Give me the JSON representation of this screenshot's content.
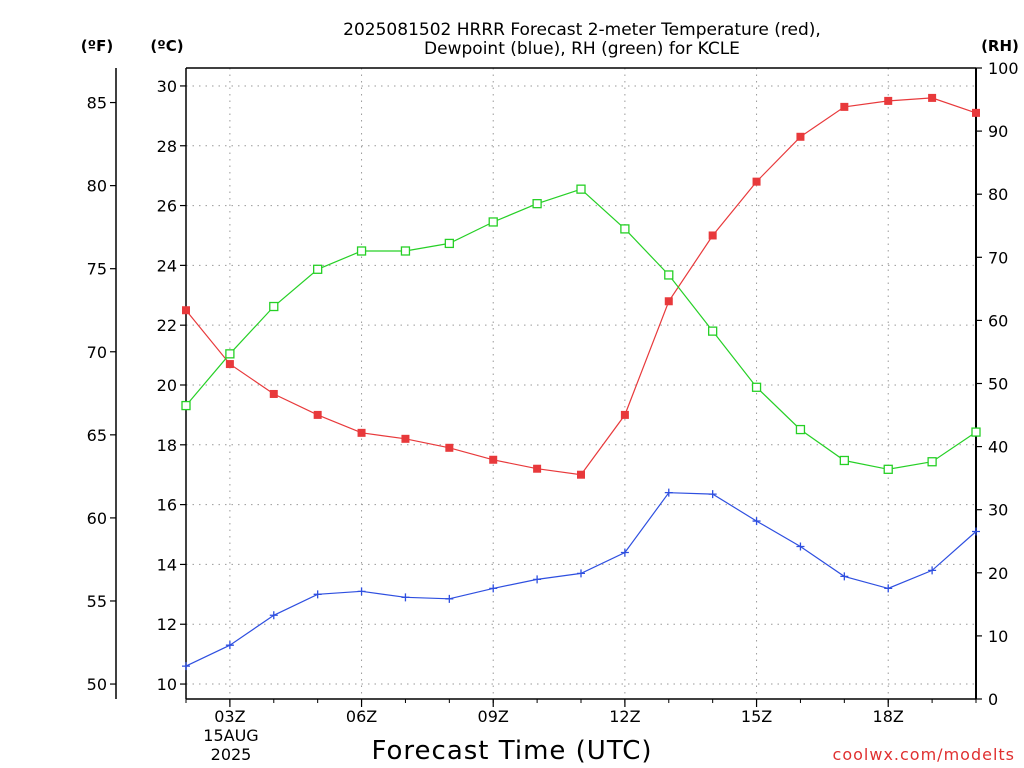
{
  "chart_data": {
    "type": "line",
    "title_lines": [
      "2025081502 HRRR Forecast 2-meter Temperature (red),",
      "Dewpoint (blue), RH (green) for KCLE"
    ],
    "xlabel": "Forecast Time (UTC)",
    "credit": "coolwx.com/modelts",
    "axis_units": {
      "fahrenheit": "(ºF)",
      "celsius": "(ºC)",
      "rh": "(RH)"
    },
    "x_date_label": [
      "15AUG",
      "2025"
    ],
    "x": [
      2,
      3,
      4,
      5,
      6,
      7,
      8,
      9,
      10,
      11,
      12,
      13,
      14,
      15,
      16,
      17,
      18,
      19,
      20
    ],
    "x_ticks": [
      {
        "x": 3,
        "label": "03Z"
      },
      {
        "x": 6,
        "label": "06Z"
      },
      {
        "x": 9,
        "label": "09Z"
      },
      {
        "x": 12,
        "label": "12Z"
      },
      {
        "x": 15,
        "label": "15Z"
      },
      {
        "x": 18,
        "label": "18Z"
      }
    ],
    "xlim": [
      2,
      20
    ],
    "celsius_ylim": [
      9.5,
      30.6
    ],
    "celsius_ticks": [
      "10",
      "12",
      "14",
      "16",
      "18",
      "20",
      "22",
      "24",
      "26",
      "28",
      "30"
    ],
    "fahrenheit_ticks": [
      "50",
      "55",
      "60",
      "65",
      "70",
      "75",
      "80",
      "85"
    ],
    "rh_ylim": [
      0,
      100
    ],
    "rh_ticks": [
      "0",
      "10",
      "20",
      "30",
      "40",
      "50",
      "60",
      "70",
      "80",
      "90",
      "100"
    ],
    "grid": true,
    "series": [
      {
        "name": "Temperature",
        "axis": "celsius",
        "color": "#e8393b",
        "marker": "filled-square",
        "values": [
          22.5,
          20.7,
          19.7,
          19.0,
          18.4,
          18.2,
          17.9,
          17.5,
          17.2,
          17.0,
          19.0,
          22.8,
          25.0,
          26.8,
          28.3,
          29.3,
          29.5,
          29.6,
          29.1
        ]
      },
      {
        "name": "Dewpoint",
        "axis": "celsius",
        "color": "#2e4fe0",
        "marker": "plus",
        "values": [
          10.6,
          11.3,
          12.3,
          13.0,
          13.1,
          12.9,
          12.85,
          13.2,
          13.5,
          13.7,
          14.4,
          16.4,
          16.35,
          15.45,
          14.6,
          13.6,
          13.2,
          13.8,
          15.1
        ]
      },
      {
        "name": "RH",
        "axis": "rh",
        "color": "#26d026",
        "marker": "open-square",
        "values": [
          46.5,
          54.7,
          62.2,
          68.1,
          71.0,
          71.0,
          72.2,
          75.6,
          78.5,
          80.8,
          74.5,
          67.2,
          58.3,
          49.4,
          42.7,
          37.8,
          36.4,
          37.6,
          42.3
        ]
      }
    ]
  }
}
